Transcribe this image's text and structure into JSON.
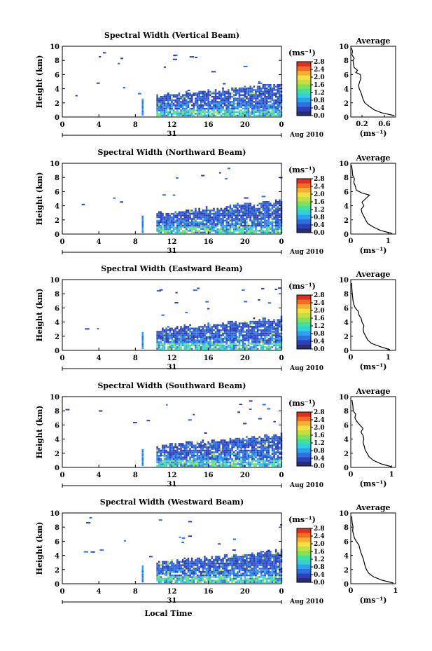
{
  "figure": {
    "x_axis_label": "Local Time",
    "day_label": "31",
    "date_label": "Aug 2010",
    "colorbar_unit": "(ms⁻¹)",
    "avg_unit": "(ms⁻¹)"
  },
  "colors": {
    "scale": [
      "#2a2f6b",
      "#2f3fb8",
      "#2f6fe0",
      "#2fa0f0",
      "#30d0e0",
      "#40e0a0",
      "#80e060",
      "#c0e040",
      "#f0e040",
      "#f0b030",
      "#f07020",
      "#e03020"
    ],
    "no_data": "#ffffff"
  },
  "chart_data": [
    {
      "type": "heatmap",
      "title": "Spectral Width (Vertical Beam)",
      "ylabel": "Height (km)",
      "xlabel": "Local Time",
      "xlim": [
        0,
        24
      ],
      "ylim": [
        0,
        10
      ],
      "xticks": [
        "0",
        "4",
        "8",
        "12",
        "16",
        "20",
        "0"
      ],
      "yticks": [
        "0",
        "2",
        "4",
        "6",
        "8",
        "10"
      ],
      "colorbar": {
        "ticks": [
          "0.0",
          "0.4",
          "0.8",
          "1.2",
          "1.6",
          "2.0",
          "2.4",
          "2.8"
        ]
      },
      "average": {
        "title": "Average",
        "xlim": [
          0,
          0.8
        ],
        "xticks": [
          "0.2",
          "0.6"
        ],
        "yticks": [
          "0",
          "2",
          "4",
          "6",
          "8",
          "10"
        ],
        "profile": [
          [
            0.78,
            0.2
          ],
          [
            0.55,
            0.6
          ],
          [
            0.42,
            1.0
          ],
          [
            0.33,
            1.5
          ],
          [
            0.25,
            2.0
          ],
          [
            0.22,
            2.5
          ],
          [
            0.2,
            3.0
          ],
          [
            0.18,
            3.5
          ],
          [
            0.15,
            4.0
          ],
          [
            0.14,
            4.5
          ],
          [
            0.16,
            5.0
          ],
          [
            0.18,
            5.5
          ],
          [
            0.17,
            6.0
          ],
          [
            0.09,
            6.3
          ],
          [
            0.12,
            6.6
          ],
          [
            0.06,
            7.0
          ],
          [
            0.05,
            7.5
          ],
          [
            0.04,
            8.0
          ],
          [
            0.06,
            8.3
          ],
          [
            0.02,
            8.8
          ],
          [
            0.03,
            9.3
          ],
          [
            0.01,
            9.8
          ]
        ]
      }
    },
    {
      "type": "heatmap",
      "title": "Spectral Width (Northward Beam)",
      "ylabel": "Height (km)",
      "xlabel": "Local Time",
      "xlim": [
        0,
        24
      ],
      "ylim": [
        0,
        10
      ],
      "xticks": [
        "0",
        "4",
        "8",
        "12",
        "16",
        "20",
        "0"
      ],
      "yticks": [
        "0",
        "2",
        "4",
        "6",
        "8",
        "10"
      ],
      "colorbar": {
        "ticks": [
          "0.0",
          "0.4",
          "0.8",
          "1.2",
          "1.6",
          "2.0",
          "2.4",
          "2.8"
        ]
      },
      "average": {
        "title": "Average",
        "xlim": [
          0,
          1.2
        ],
        "xticks": [
          "0",
          "1"
        ],
        "yticks": [
          "0",
          "2",
          "4",
          "6",
          "8",
          "10"
        ],
        "profile": [
          [
            1.1,
            0.1
          ],
          [
            0.8,
            0.5
          ],
          [
            0.6,
            1.0
          ],
          [
            0.45,
            1.5
          ],
          [
            0.4,
            2.0
          ],
          [
            0.35,
            2.5
          ],
          [
            0.3,
            3.0
          ],
          [
            0.28,
            3.5
          ],
          [
            0.35,
            4.0
          ],
          [
            0.3,
            4.5
          ],
          [
            0.4,
            5.0
          ],
          [
            0.5,
            5.5
          ],
          [
            0.3,
            5.8
          ],
          [
            0.15,
            6.2
          ],
          [
            0.12,
            6.8
          ],
          [
            0.08,
            7.3
          ],
          [
            0.1,
            7.8
          ],
          [
            0.05,
            8.3
          ],
          [
            0.04,
            9.0
          ],
          [
            0.02,
            9.7
          ]
        ]
      }
    },
    {
      "type": "heatmap",
      "title": "Spectral Width (Eastward Beam)",
      "ylabel": "Height (km)",
      "xlabel": "Local Time",
      "xlim": [
        0,
        24
      ],
      "ylim": [
        0,
        10
      ],
      "xticks": [
        "0",
        "4",
        "8",
        "12",
        "16",
        "20",
        "0"
      ],
      "yticks": [
        "0",
        "2",
        "4",
        "6",
        "8",
        "10"
      ],
      "colorbar": {
        "ticks": [
          "0.0",
          "0.4",
          "0.8",
          "1.2",
          "1.6",
          "2.0",
          "2.4",
          "2.8"
        ]
      },
      "average": {
        "title": "Average",
        "xlim": [
          0,
          1.2
        ],
        "xticks": [
          "0",
          "1"
        ],
        "yticks": [
          "0",
          "2",
          "4",
          "6",
          "8",
          "10"
        ],
        "profile": [
          [
            1.05,
            0.1
          ],
          [
            0.8,
            0.5
          ],
          [
            0.55,
            1.0
          ],
          [
            0.45,
            1.5
          ],
          [
            0.4,
            2.0
          ],
          [
            0.35,
            2.5
          ],
          [
            0.33,
            3.0
          ],
          [
            0.35,
            3.5
          ],
          [
            0.3,
            4.0
          ],
          [
            0.28,
            4.5
          ],
          [
            0.22,
            5.0
          ],
          [
            0.2,
            5.5
          ],
          [
            0.12,
            6.0
          ],
          [
            0.08,
            6.5
          ],
          [
            0.06,
            7.0
          ],
          [
            0.05,
            7.5
          ],
          [
            0.04,
            8.0
          ],
          [
            0.03,
            8.7
          ],
          [
            0.02,
            9.5
          ]
        ]
      }
    },
    {
      "type": "heatmap",
      "title": "Spectral Width (Southward Beam)",
      "ylabel": "Height (km)",
      "xlabel": "Local Time",
      "xlim": [
        0,
        24
      ],
      "ylim": [
        0,
        10
      ],
      "xticks": [
        "0",
        "4",
        "8",
        "12",
        "16",
        "20",
        "0"
      ],
      "yticks": [
        "0",
        "2",
        "4",
        "6",
        "8",
        "10"
      ],
      "colorbar": {
        "ticks": [
          "0.0",
          "0.4",
          "0.8",
          "1.2",
          "1.6",
          "2.0",
          "2.4",
          "2.8"
        ]
      },
      "average": {
        "title": "Average",
        "xlim": [
          0,
          1.1
        ],
        "xticks": [
          "0",
          "1"
        ],
        "yticks": [
          "0",
          "2",
          "4",
          "6",
          "8",
          "10"
        ],
        "profile": [
          [
            1.0,
            0.1
          ],
          [
            0.75,
            0.5
          ],
          [
            0.55,
            1.0
          ],
          [
            0.45,
            1.5
          ],
          [
            0.4,
            2.0
          ],
          [
            0.35,
            2.5
          ],
          [
            0.33,
            3.0
          ],
          [
            0.3,
            3.5
          ],
          [
            0.32,
            4.0
          ],
          [
            0.3,
            4.5
          ],
          [
            0.25,
            5.0
          ],
          [
            0.3,
            5.5
          ],
          [
            0.22,
            6.0
          ],
          [
            0.15,
            6.5
          ],
          [
            0.1,
            7.0
          ],
          [
            0.12,
            7.5
          ],
          [
            0.06,
            8.0
          ],
          [
            0.05,
            8.8
          ],
          [
            0.03,
            9.5
          ]
        ]
      }
    },
    {
      "type": "heatmap",
      "title": "Spectral Width (Westward Beam)",
      "ylabel": "Height (km)",
      "xlabel": "Local Time",
      "xlim": [
        0,
        24
      ],
      "ylim": [
        0,
        10
      ],
      "xticks": [
        "0",
        "4",
        "8",
        "12",
        "16",
        "20",
        "0"
      ],
      "yticks": [
        "0",
        "2",
        "4",
        "6",
        "8",
        "10"
      ],
      "colorbar": {
        "ticks": [
          "0.0",
          "0.4",
          "0.8",
          "1.2",
          "1.6",
          "2.0",
          "2.4",
          "2.8"
        ]
      },
      "average": {
        "title": "Average",
        "xlim": [
          0,
          1.0
        ],
        "xticks": [
          "0",
          "1"
        ],
        "yticks": [
          "0",
          "2",
          "4",
          "6",
          "8",
          "10"
        ],
        "profile": [
          [
            0.95,
            0.1
          ],
          [
            0.7,
            0.5
          ],
          [
            0.5,
            1.0
          ],
          [
            0.4,
            1.5
          ],
          [
            0.35,
            2.0
          ],
          [
            0.32,
            2.5
          ],
          [
            0.3,
            3.0
          ],
          [
            0.28,
            3.5
          ],
          [
            0.25,
            4.0
          ],
          [
            0.22,
            4.5
          ],
          [
            0.2,
            5.0
          ],
          [
            0.18,
            5.5
          ],
          [
            0.12,
            6.0
          ],
          [
            0.08,
            6.5
          ],
          [
            0.06,
            7.0
          ],
          [
            0.04,
            7.5
          ],
          [
            0.05,
            8.0
          ],
          [
            0.03,
            8.7
          ],
          [
            0.02,
            9.5
          ]
        ]
      }
    }
  ]
}
